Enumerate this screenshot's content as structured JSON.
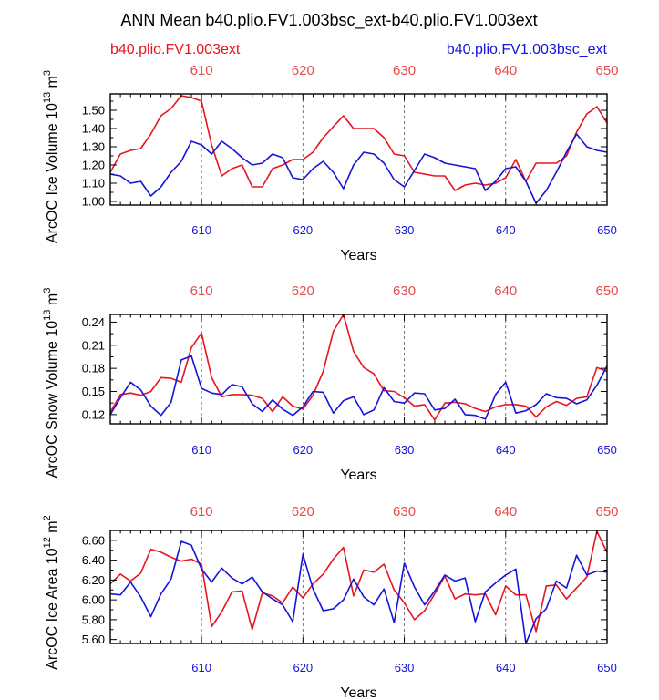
{
  "figure": {
    "title": "ANN Mean b40.plio.FV1.003bsc_ext-b40.plio.FV1.003ext",
    "legend_left": "b40.plio.FV1.003ext",
    "legend_right": "b40.plio.FV1.003bsc_ext",
    "colors": {
      "ext": "#e8141e",
      "bsc": "#1414dc",
      "top_ticks": "#e84a4a",
      "bottom_ticks": "#1414dc"
    }
  },
  "chart_data": [
    {
      "type": "line",
      "id": "ice-volume",
      "ylabel": "ArcOC Ice Volume 10",
      "ylabel_exp": "13",
      "ylabel_unit": " m",
      "ylabel_unit_exp": "3",
      "xlabel": "Years",
      "xlim": [
        601,
        650
      ],
      "ylim": [
        0.98,
        1.59
      ],
      "yticks": [
        1.0,
        1.1,
        1.2,
        1.3,
        1.4,
        1.5
      ],
      "ytick_labels": [
        "1.00",
        "1.10",
        "1.20",
        "1.30",
        "1.40",
        "1.50"
      ],
      "xticks": [
        610,
        620,
        630,
        640,
        650
      ],
      "xtick_labels": [
        "610",
        "620",
        "630",
        "640",
        "650"
      ],
      "x": [
        601,
        602,
        603,
        604,
        605,
        606,
        607,
        608,
        609,
        610,
        611,
        612,
        613,
        614,
        615,
        616,
        617,
        618,
        619,
        620,
        621,
        622,
        623,
        624,
        625,
        626,
        627,
        628,
        629,
        630,
        631,
        632,
        633,
        634,
        635,
        636,
        637,
        638,
        639,
        640,
        641,
        642,
        643,
        644,
        645,
        646,
        647,
        648,
        649,
        650
      ],
      "series": [
        {
          "name": "b40.plio.FV1.003ext",
          "color": "#e8141e",
          "values": [
            1.16,
            1.26,
            1.28,
            1.29,
            1.37,
            1.47,
            1.51,
            1.58,
            1.57,
            1.55,
            1.31,
            1.14,
            1.18,
            1.2,
            1.08,
            1.08,
            1.18,
            1.2,
            1.23,
            1.23,
            1.27,
            1.35,
            1.41,
            1.47,
            1.4,
            1.4,
            1.4,
            1.35,
            1.26,
            1.25,
            1.16,
            1.15,
            1.14,
            1.14,
            1.06,
            1.09,
            1.1,
            1.09,
            1.1,
            1.13,
            1.23,
            1.11,
            1.21,
            1.21,
            1.21,
            1.25,
            1.38,
            1.48,
            1.52,
            1.43
          ]
        },
        {
          "name": "b40.plio.FV1.003bsc_ext",
          "color": "#1414dc",
          "values": [
            1.15,
            1.14,
            1.1,
            1.11,
            1.03,
            1.08,
            1.16,
            1.22,
            1.33,
            1.31,
            1.26,
            1.33,
            1.29,
            1.24,
            1.2,
            1.21,
            1.26,
            1.24,
            1.13,
            1.12,
            1.18,
            1.22,
            1.16,
            1.07,
            1.2,
            1.27,
            1.26,
            1.21,
            1.12,
            1.08,
            1.17,
            1.26,
            1.24,
            1.21,
            1.2,
            1.19,
            1.18,
            1.06,
            1.11,
            1.18,
            1.19,
            1.11,
            0.99,
            1.06,
            1.16,
            1.27,
            1.37,
            1.3,
            1.28,
            1.27
          ]
        }
      ]
    },
    {
      "type": "line",
      "id": "snow-volume",
      "ylabel": "ArcOC Snow Volume 10",
      "ylabel_exp": "13",
      "ylabel_unit": " m",
      "ylabel_unit_exp": "3",
      "xlabel": "Years",
      "xlim": [
        601,
        650
      ],
      "ylim": [
        0.108,
        0.25
      ],
      "yticks": [
        0.12,
        0.15,
        0.18,
        0.21,
        0.24
      ],
      "ytick_labels": [
        "0.12",
        "0.15",
        "0.18",
        "0.21",
        "0.24"
      ],
      "xticks": [
        610,
        620,
        630,
        640,
        650
      ],
      "xtick_labels": [
        "610",
        "620",
        "630",
        "640",
        "650"
      ],
      "x": [
        601,
        602,
        603,
        604,
        605,
        606,
        607,
        608,
        609,
        610,
        611,
        612,
        613,
        614,
        615,
        616,
        617,
        618,
        619,
        620,
        621,
        622,
        623,
        624,
        625,
        626,
        627,
        628,
        629,
        630,
        631,
        632,
        633,
        634,
        635,
        636,
        637,
        638,
        639,
        640,
        641,
        642,
        643,
        644,
        645,
        646,
        647,
        648,
        649,
        650
      ],
      "series": [
        {
          "name": "b40.plio.FV1.003ext",
          "color": "#e8141e",
          "values": [
            0.123,
            0.146,
            0.148,
            0.145,
            0.15,
            0.168,
            0.167,
            0.162,
            0.207,
            0.226,
            0.168,
            0.143,
            0.146,
            0.146,
            0.145,
            0.141,
            0.124,
            0.143,
            0.131,
            0.127,
            0.145,
            0.176,
            0.228,
            0.25,
            0.202,
            0.181,
            0.173,
            0.151,
            0.15,
            0.142,
            0.131,
            0.133,
            0.113,
            0.135,
            0.136,
            0.134,
            0.128,
            0.124,
            0.13,
            0.133,
            0.133,
            0.131,
            0.117,
            0.13,
            0.137,
            0.132,
            0.141,
            0.143,
            0.181,
            0.176
          ]
        },
        {
          "name": "b40.plio.FV1.003bsc_ext",
          "color": "#1414dc",
          "values": [
            0.12,
            0.142,
            0.162,
            0.152,
            0.131,
            0.119,
            0.136,
            0.191,
            0.196,
            0.154,
            0.148,
            0.146,
            0.159,
            0.156,
            0.134,
            0.124,
            0.139,
            0.127,
            0.119,
            0.13,
            0.15,
            0.149,
            0.122,
            0.138,
            0.143,
            0.12,
            0.126,
            0.155,
            0.137,
            0.135,
            0.148,
            0.147,
            0.126,
            0.128,
            0.14,
            0.12,
            0.119,
            0.114,
            0.146,
            0.162,
            0.122,
            0.125,
            0.133,
            0.147,
            0.142,
            0.141,
            0.134,
            0.139,
            0.158,
            0.183
          ]
        }
      ]
    },
    {
      "type": "line",
      "id": "ice-area",
      "ylabel": "ArcOC Ice Area 10",
      "ylabel_exp": "12",
      "ylabel_unit": " m",
      "ylabel_unit_exp": "2",
      "xlabel": "Years",
      "xlim": [
        601,
        650
      ],
      "ylim": [
        5.56,
        6.7
      ],
      "yticks": [
        5.6,
        5.8,
        6.0,
        6.2,
        6.4,
        6.6
      ],
      "ytick_labels": [
        "5.60",
        "5.80",
        "6.00",
        "6.20",
        "6.40",
        "6.60"
      ],
      "xticks": [
        610,
        620,
        630,
        640,
        650
      ],
      "xtick_labels": [
        "610",
        "620",
        "630",
        "640",
        "650"
      ],
      "x": [
        601,
        602,
        603,
        604,
        605,
        606,
        607,
        608,
        609,
        610,
        611,
        612,
        613,
        614,
        615,
        616,
        617,
        618,
        619,
        620,
        621,
        622,
        623,
        624,
        625,
        626,
        627,
        628,
        629,
        630,
        631,
        632,
        633,
        634,
        635,
        636,
        637,
        638,
        639,
        640,
        641,
        642,
        643,
        644,
        645,
        646,
        647,
        648,
        649,
        650
      ],
      "series": [
        {
          "name": "b40.plio.FV1.003ext",
          "color": "#e8141e",
          "values": [
            6.16,
            6.26,
            6.19,
            6.27,
            6.51,
            6.48,
            6.43,
            6.39,
            6.41,
            6.36,
            5.73,
            5.88,
            6.08,
            6.09,
            5.7,
            6.07,
            6.04,
            5.97,
            6.13,
            6.02,
            6.16,
            6.26,
            6.41,
            6.53,
            6.04,
            6.3,
            6.28,
            6.36,
            6.1,
            5.97,
            5.8,
            5.89,
            6.06,
            6.24,
            6.01,
            6.06,
            6.05,
            6.06,
            5.85,
            6.14,
            6.05,
            6.05,
            5.68,
            6.14,
            6.15,
            6.01,
            6.12,
            6.23,
            6.69,
            6.48
          ]
        },
        {
          "name": "b40.plio.FV1.003bsc_ext",
          "color": "#1414dc",
          "values": [
            6.06,
            6.05,
            6.18,
            6.03,
            5.83,
            6.06,
            6.21,
            6.59,
            6.55,
            6.31,
            6.18,
            6.32,
            6.22,
            6.16,
            6.23,
            6.08,
            6.01,
            5.95,
            5.78,
            6.46,
            6.11,
            5.89,
            5.91,
            6.0,
            6.21,
            6.03,
            5.95,
            6.11,
            5.77,
            6.37,
            6.13,
            5.95,
            6.09,
            6.25,
            6.19,
            6.22,
            5.78,
            6.08,
            6.17,
            6.25,
            6.31,
            5.56,
            5.81,
            5.91,
            6.19,
            6.12,
            6.45,
            6.25,
            6.29,
            6.28
          ]
        }
      ]
    }
  ]
}
